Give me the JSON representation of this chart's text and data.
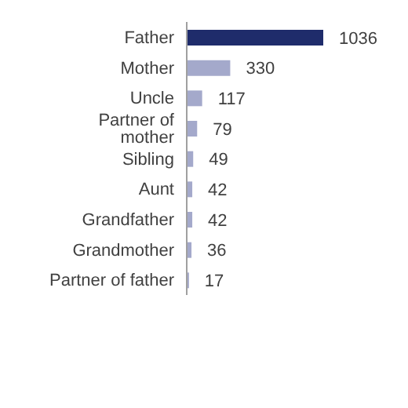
{
  "chart_data": {
    "type": "bar",
    "orientation": "horizontal",
    "categories": [
      "Father",
      "Mother",
      "Uncle",
      "Partner of mother",
      "Sibling",
      "Aunt",
      "Grandfather",
      "Grandmother",
      "Partner of father"
    ],
    "values": [
      1036,
      330,
      117,
      79,
      49,
      42,
      42,
      36,
      17
    ],
    "colors": [
      "#1f2c6b",
      "#a4a9cb",
      "#a4a9cb",
      "#a4a9cb",
      "#a4a9cb",
      "#a4a9cb",
      "#a4a9cb",
      "#a4a9cb",
      "#a4a9cb"
    ],
    "data_labels": true,
    "grid": false,
    "legend": false
  }
}
